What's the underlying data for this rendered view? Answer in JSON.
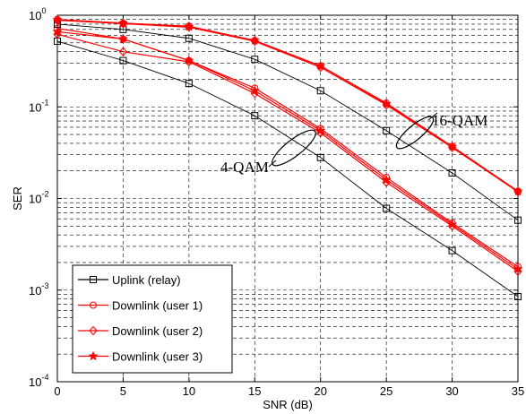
{
  "chart_data": {
    "type": "line",
    "title": "",
    "xlabel": "SNR (dB)",
    "ylabel": "SER",
    "xlim": [
      0,
      35
    ],
    "ylim": [
      0.0001,
      1
    ],
    "yscale": "log",
    "grid": true,
    "x_ticks": [
      "0",
      "5",
      "10",
      "15",
      "20",
      "25",
      "30",
      "35"
    ],
    "y_tick_base": "10",
    "y_tick_exponents": [
      "0",
      "-1",
      "-2",
      "-3",
      "-4"
    ],
    "legend_position": "bottom-left",
    "x": [
      0,
      5,
      10,
      15,
      20,
      25,
      30,
      35
    ],
    "series": [
      {
        "name": "Uplink (relay)",
        "color": "#000000",
        "marker": "square",
        "group": "4-QAM",
        "values": [
          0.52,
          0.32,
          0.18,
          0.08,
          0.028,
          0.0078,
          0.0027,
          0.00085
        ]
      },
      {
        "name": "Downlink (user 1)",
        "color": "#ff0000",
        "marker": "circle",
        "group": "4-QAM",
        "values": [
          0.72,
          0.55,
          0.32,
          0.16,
          0.058,
          0.017,
          0.0054,
          0.0018
        ]
      },
      {
        "name": "Downlink (user 2)",
        "color": "#ff0000",
        "marker": "diamond",
        "group": "4-QAM",
        "values": [
          0.62,
          0.4,
          0.31,
          0.14,
          0.052,
          0.015,
          0.005,
          0.0016
        ]
      },
      {
        "name": "Downlink (user 3)",
        "color": "#ff0000",
        "marker": "star",
        "group": "4-QAM",
        "values": [
          0.66,
          0.55,
          0.32,
          0.15,
          0.055,
          0.016,
          0.0052,
          0.0017
        ]
      },
      {
        "name": "Uplink (relay)",
        "color": "#000000",
        "marker": "square",
        "group": "16-QAM",
        "values": [
          0.8,
          0.7,
          0.56,
          0.33,
          0.15,
          0.055,
          0.019,
          0.0058
        ]
      },
      {
        "name": "Downlink (user 1)",
        "color": "#ff0000",
        "marker": "circle",
        "group": "16-QAM",
        "values": [
          0.9,
          0.82,
          0.76,
          0.53,
          0.28,
          0.11,
          0.037,
          0.012
        ]
      },
      {
        "name": "Downlink (user 2)",
        "color": "#ff0000",
        "marker": "diamond",
        "group": "16-QAM",
        "values": [
          0.88,
          0.81,
          0.74,
          0.52,
          0.27,
          0.105,
          0.036,
          0.0118
        ]
      },
      {
        "name": "Downlink (user 3)",
        "color": "#ff0000",
        "marker": "star",
        "group": "16-QAM",
        "values": [
          0.89,
          0.82,
          0.75,
          0.53,
          0.28,
          0.108,
          0.037,
          0.012
        ]
      }
    ],
    "annotations": [
      {
        "text": "4-QAM"
      },
      {
        "text": "16-QAM"
      }
    ]
  }
}
